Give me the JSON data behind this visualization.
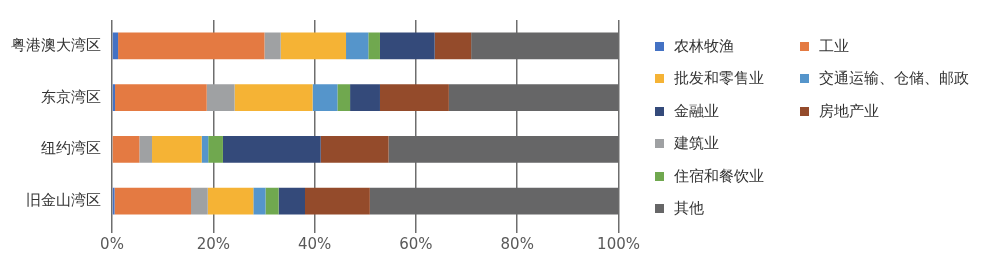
{
  "chart_data": {
    "type": "bar",
    "orientation": "horizontal",
    "stacked": true,
    "categories": [
      "粤港澳大湾区",
      "东京湾区",
      "纽约湾区",
      "旧金山湾区"
    ],
    "series": [
      {
        "name": "农林牧渔",
        "color": "#4472c4",
        "values": [
          1.2,
          0.6,
          0,
          0.5
        ]
      },
      {
        "name": "工业",
        "color": "#e47a42",
        "values": [
          28.9,
          18.1,
          5.4,
          15.1
        ]
      },
      {
        "name": "建筑业",
        "color": "#9fa1a3",
        "values": [
          3.2,
          5.5,
          2.5,
          3.3
        ]
      },
      {
        "name": "批发和零售业",
        "color": "#f5b335",
        "values": [
          12.9,
          15.4,
          9.8,
          9.0
        ]
      },
      {
        "name": "交通运输、仓储、邮政",
        "color": "#5595cb",
        "values": [
          4.4,
          4.9,
          1.3,
          2.4
        ]
      },
      {
        "name": "住宿和餐饮业",
        "color": "#70a84f",
        "values": [
          2.3,
          2.5,
          2.9,
          2.6
        ]
      },
      {
        "name": "金融业",
        "color": "#344a7a",
        "values": [
          10.8,
          5.9,
          19.3,
          5.2
        ]
      },
      {
        "name": "房地产业",
        "color": "#944b2b",
        "values": [
          7.2,
          13.6,
          13.4,
          12.8
        ]
      },
      {
        "name": "其他",
        "color": "#666667",
        "values": [
          29.1,
          33.5,
          45.4,
          49.1
        ]
      }
    ],
    "xlim": [
      0,
      100
    ],
    "xticks": [
      {
        "value": 0,
        "label": "0%"
      },
      {
        "value": 20,
        "label": "20%"
      },
      {
        "value": 40,
        "label": "40%"
      },
      {
        "value": 60,
        "label": "60%"
      },
      {
        "value": 80,
        "label": "80%"
      },
      {
        "value": 100,
        "label": "100%"
      }
    ],
    "grid": "x",
    "legend": "right"
  }
}
